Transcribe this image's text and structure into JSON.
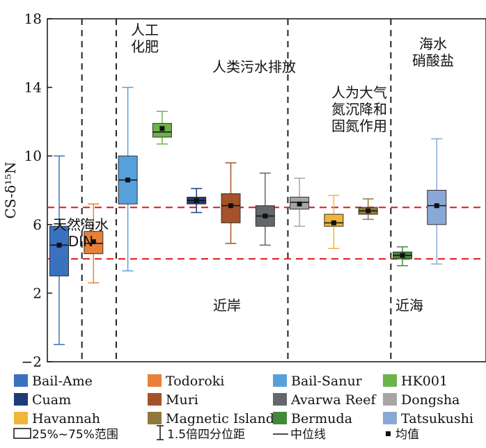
{
  "chart_data": {
    "type": "box",
    "ylabel": "CS-δ¹⁵N",
    "ylim": [
      -2,
      18
    ],
    "yticks": [
      -2,
      2,
      6,
      10,
      14,
      18
    ],
    "grid": false,
    "legend_position": "bottom",
    "categories": [
      "Bail-Ame",
      "Todoroki",
      "Bail-Sanur",
      "HK001",
      "Cuam",
      "Muri",
      "Avarwa Reef",
      "Dongsha",
      "Havannah",
      "Magnetic Island",
      "Bermuda",
      "Tatsukushi"
    ],
    "series": [
      {
        "name": "Bail-Ame",
        "color": "#3b72c0",
        "min": -1.0,
        "q1": 3.0,
        "median": 4.8,
        "q3": 5.9,
        "max": 10.0,
        "mean": 4.8
      },
      {
        "name": "Todoroki",
        "color": "#e8803a",
        "min": 2.6,
        "q1": 4.3,
        "median": 4.9,
        "q3": 5.6,
        "max": 7.2,
        "mean": 5.0
      },
      {
        "name": "Bail-Sanur",
        "color": "#56a1dc",
        "min": 3.3,
        "q1": 7.2,
        "median": 8.6,
        "q3": 10.0,
        "max": 14.0,
        "mean": 8.6
      },
      {
        "name": "HK001",
        "color": "#6cb34a",
        "min": 10.7,
        "q1": 11.1,
        "median": 11.4,
        "q3": 11.9,
        "max": 12.6,
        "mean": 11.6
      },
      {
        "name": "Cuam",
        "color": "#1d3b78",
        "min": 6.7,
        "q1": 7.2,
        "median": 7.4,
        "q3": 7.6,
        "max": 8.1,
        "mean": 7.4
      },
      {
        "name": "Muri",
        "color": "#a4522a",
        "min": 4.9,
        "q1": 6.1,
        "median": 7.1,
        "q3": 7.8,
        "max": 9.6,
        "mean": 7.1
      },
      {
        "name": "Avarwa Reef",
        "color": "#63666a",
        "min": 4.8,
        "q1": 5.9,
        "median": 6.5,
        "q3": 7.1,
        "max": 9.0,
        "mean": 6.5
      },
      {
        "name": "Dongsha",
        "color": "#a6a6a6",
        "min": 5.9,
        "q1": 6.9,
        "median": 7.3,
        "q3": 7.6,
        "max": 8.7,
        "mean": 7.2
      },
      {
        "name": "Havannah",
        "color": "#f0b53a",
        "min": 4.6,
        "q1": 5.9,
        "median": 6.1,
        "q3": 6.6,
        "max": 7.7,
        "mean": 6.1
      },
      {
        "name": "Magnetic Island",
        "color": "#8f7a3a",
        "min": 6.3,
        "q1": 6.6,
        "median": 6.8,
        "q3": 7.0,
        "max": 7.5,
        "mean": 6.8
      },
      {
        "name": "Bermuda",
        "color": "#43873a",
        "min": 3.6,
        "q1": 4.0,
        "median": 4.2,
        "q3": 4.4,
        "max": 4.7,
        "mean": 4.2
      },
      {
        "name": "Tatsukushi",
        "color": "#8aa8d6",
        "min": 3.7,
        "q1": 6.0,
        "median": 7.1,
        "q3": 8.0,
        "max": 11.0,
        "mean": 7.1
      }
    ],
    "reference_lines": [
      {
        "y": 7.0,
        "color": "#e03030",
        "style": "dashed"
      },
      {
        "y": 4.0,
        "color": "#e03030",
        "style": "dashed"
      }
    ],
    "region_dividers": [
      {
        "after_category": "Bail-Ame"
      },
      {
        "after_category": "Todoroki"
      },
      {
        "after_category": "Avarwa Reef"
      },
      {
        "after_category": "Magnetic Island"
      }
    ],
    "annotations": {
      "natural_seawater": [
        "天然海水",
        "DIN"
      ],
      "fertilizer": [
        "人工",
        "化肥"
      ],
      "sewage": [
        "人类污水排放"
      ],
      "deposition": [
        "人为大气",
        "氮沉降和",
        "固氮作用"
      ],
      "nitrate": [
        "海水",
        "硝酸盐"
      ],
      "nearshore": "近岸",
      "offshore": "近海"
    },
    "legend_symbols": {
      "box": "25%~75%范围",
      "whisker": "1.5倍四分位距",
      "median": "中位线",
      "mean": "均值"
    }
  }
}
